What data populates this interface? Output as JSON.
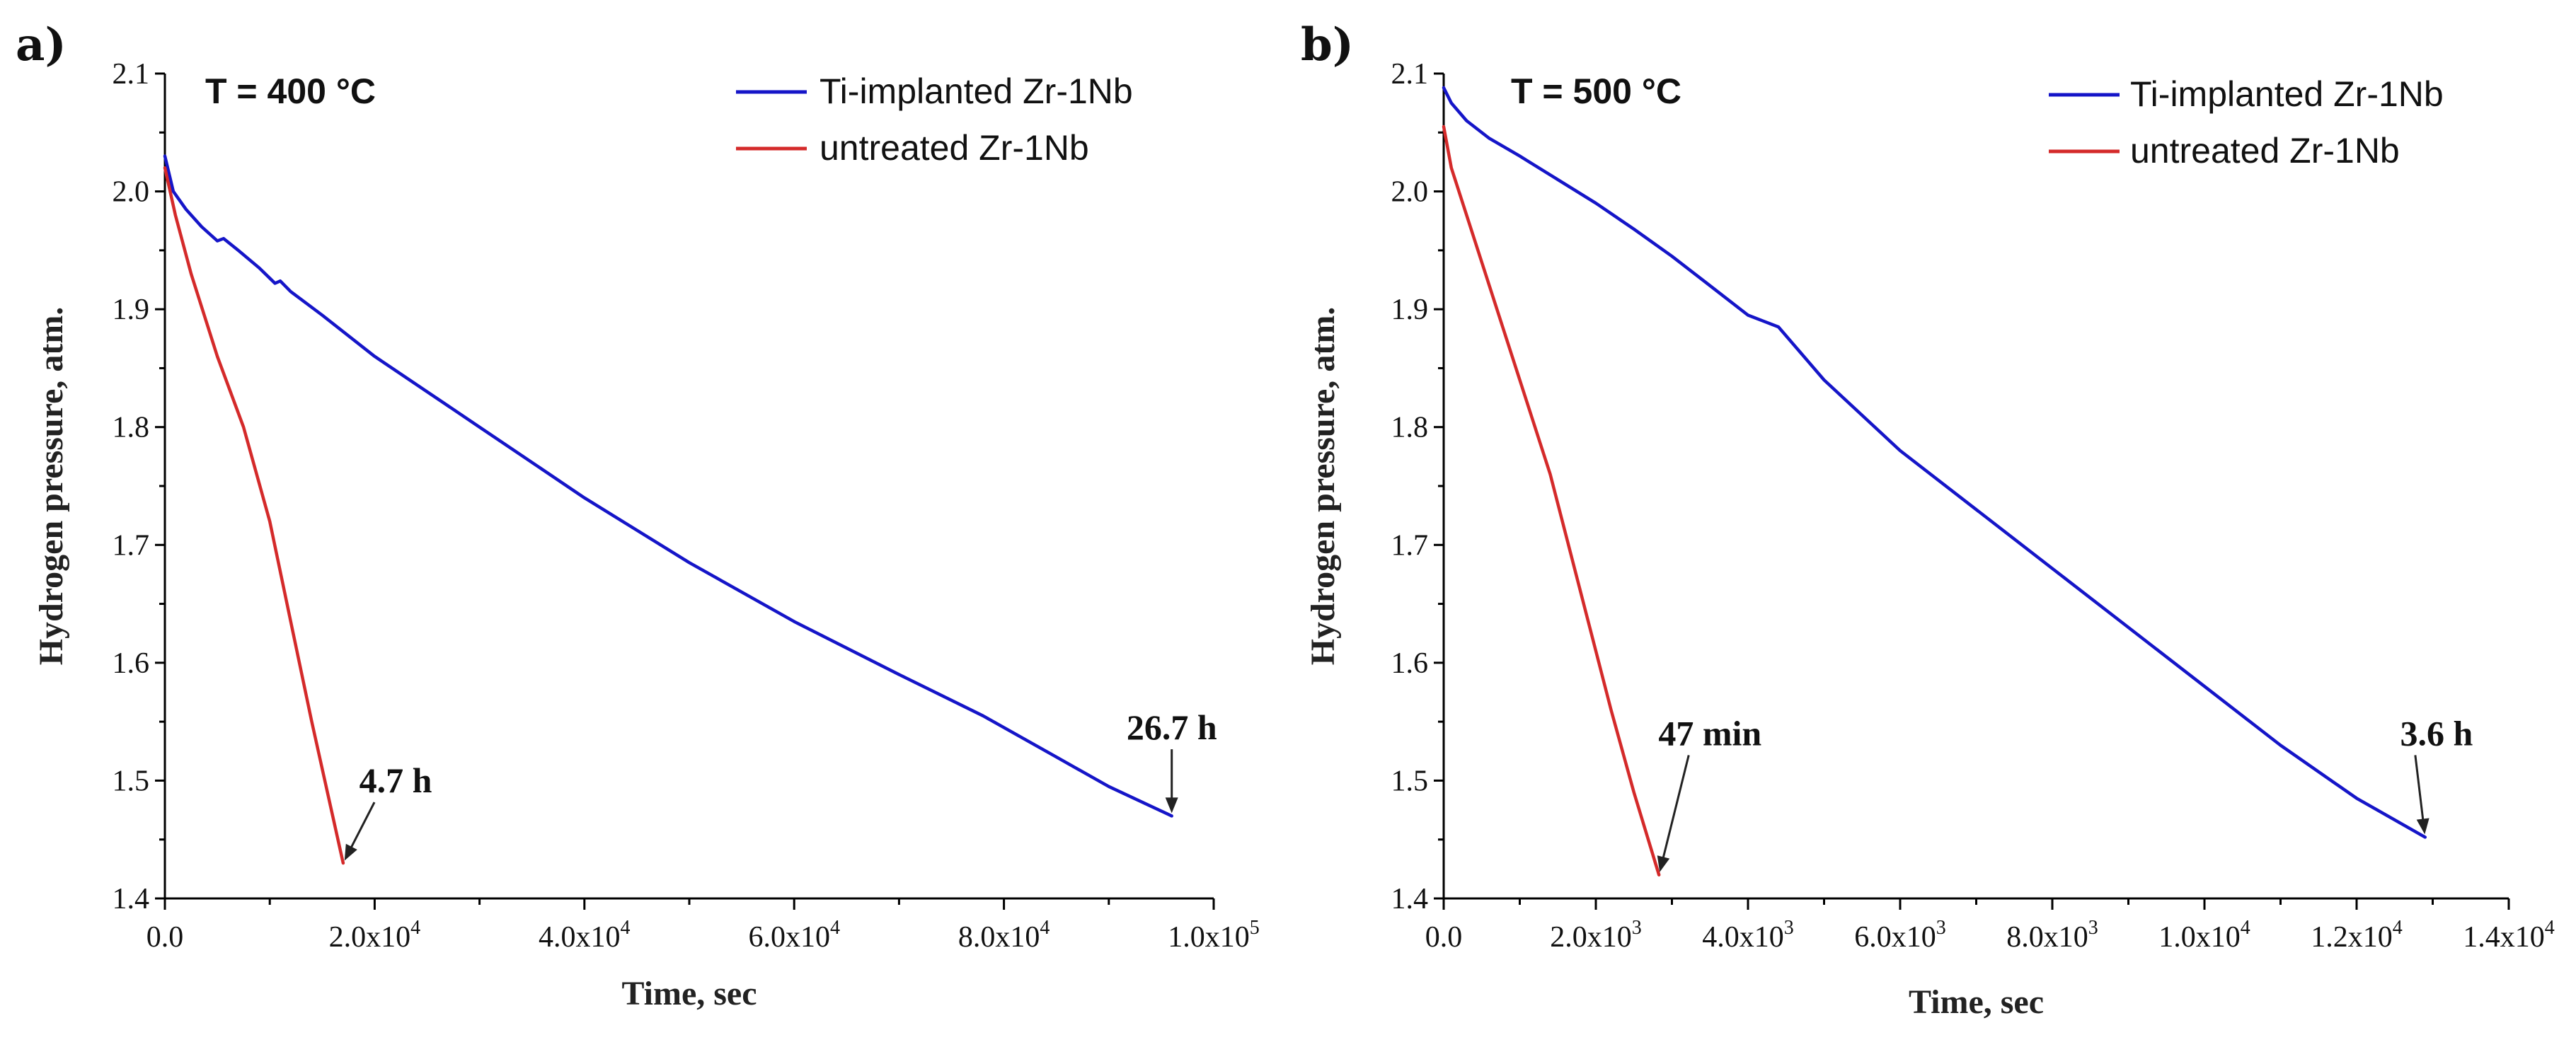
{
  "chart_data": [
    {
      "type": "line",
      "panel_label": "a)",
      "annotation_title": "T = 400 °C",
      "xlabel": "Time, sec",
      "ylabel": "Hydrogen pressure, atm.",
      "xlim": [
        0,
        100000
      ],
      "ylim": [
        1.4,
        2.1
      ],
      "x_ticks": [
        {
          "value": 0,
          "mantissa": "0.0",
          "exponent": ""
        },
        {
          "value": 20000,
          "mantissa": "2.0x10",
          "exponent": "4"
        },
        {
          "value": 40000,
          "mantissa": "4.0x10",
          "exponent": "4"
        },
        {
          "value": 60000,
          "mantissa": "6.0x10",
          "exponent": "4"
        },
        {
          "value": 80000,
          "mantissa": "8.0x10",
          "exponent": "4"
        },
        {
          "value": 100000,
          "mantissa": "1.0x10",
          "exponent": "5"
        }
      ],
      "y_ticks": [
        1.4,
        1.5,
        1.6,
        1.7,
        1.8,
        1.9,
        2.0,
        2.1
      ],
      "y_tick_labels": [
        "1.4",
        "1.5",
        "1.6",
        "1.7",
        "1.8",
        "1.9",
        "2.0",
        "2.1"
      ],
      "legend_position": "top-right",
      "series": [
        {
          "name": "Ti-implanted Zr-1Nb",
          "color": "#1515c8",
          "x": [
            0,
            800,
            2000,
            3500,
            5000,
            5600,
            7000,
            9000,
            10500,
            11000,
            12000,
            15000,
            20000,
            25000,
            30000,
            40000,
            50000,
            60000,
            70000,
            78000,
            85000,
            90000,
            96000
          ],
          "y": [
            2.03,
            2.0,
            1.985,
            1.97,
            1.958,
            1.96,
            1.95,
            1.935,
            1.922,
            1.924,
            1.915,
            1.895,
            1.86,
            1.83,
            1.8,
            1.74,
            1.685,
            1.635,
            1.59,
            1.555,
            1.52,
            1.495,
            1.47
          ]
        },
        {
          "name": "untreated Zr-1Nb",
          "color": "#d42a2a",
          "x": [
            0,
            1000,
            2500,
            5000,
            7500,
            10000,
            12000,
            14000,
            16000,
            17000
          ],
          "y": [
            2.02,
            1.98,
            1.93,
            1.86,
            1.8,
            1.72,
            1.635,
            1.55,
            1.47,
            1.43
          ]
        }
      ],
      "annotations": [
        {
          "text": "4.7 h",
          "x": 17000,
          "y": 1.43,
          "label_x": 22000,
          "label_y": 1.49,
          "label_anchor": "middle"
        },
        {
          "text": "26.7 h",
          "x": 96000,
          "y": 1.47,
          "label_x": 96000,
          "label_y": 1.535,
          "label_anchor": "middle"
        }
      ]
    },
    {
      "type": "line",
      "panel_label": "b)",
      "annotation_title": "T = 500 °C",
      "xlabel": "Time, sec",
      "ylabel": "Hydrogen pressure, atm.",
      "xlim": [
        0,
        14000
      ],
      "ylim": [
        1.4,
        2.1
      ],
      "x_ticks": [
        {
          "value": 0,
          "mantissa": "0.0",
          "exponent": ""
        },
        {
          "value": 2000,
          "mantissa": "2.0x10",
          "exponent": "3"
        },
        {
          "value": 4000,
          "mantissa": "4.0x10",
          "exponent": "3"
        },
        {
          "value": 6000,
          "mantissa": "6.0x10",
          "exponent": "3"
        },
        {
          "value": 8000,
          "mantissa": "8.0x10",
          "exponent": "3"
        },
        {
          "value": 10000,
          "mantissa": "1.0x10",
          "exponent": "4"
        },
        {
          "value": 12000,
          "mantissa": "1.2x10",
          "exponent": "4"
        },
        {
          "value": 14000,
          "mantissa": "1.4x10",
          "exponent": "4"
        }
      ],
      "y_ticks": [
        1.4,
        1.5,
        1.6,
        1.7,
        1.8,
        1.9,
        2.0,
        2.1
      ],
      "y_tick_labels": [
        "1.4",
        "1.5",
        "1.6",
        "1.7",
        "1.8",
        "1.9",
        "2.0",
        "2.1"
      ],
      "legend_position": "top-right",
      "series": [
        {
          "name": "Ti-implanted Zr-1Nb",
          "color": "#1515c8",
          "x": [
            0,
            100,
            300,
            600,
            1000,
            1500,
            2000,
            2500,
            3000,
            3500,
            4000,
            4200,
            4400,
            5000,
            6000,
            7000,
            8000,
            9000,
            10000,
            11000,
            12000,
            12900
          ],
          "y": [
            2.088,
            2.075,
            2.06,
            2.045,
            2.03,
            2.01,
            1.99,
            1.968,
            1.945,
            1.92,
            1.895,
            1.89,
            1.885,
            1.84,
            1.78,
            1.73,
            1.68,
            1.63,
            1.58,
            1.53,
            1.485,
            1.452
          ]
        },
        {
          "name": "untreated Zr-1Nb",
          "color": "#d42a2a",
          "x": [
            0,
            100,
            300,
            600,
            1000,
            1400,
            1800,
            2200,
            2500,
            2830
          ],
          "y": [
            2.055,
            2.02,
            1.98,
            1.92,
            1.84,
            1.76,
            1.66,
            1.56,
            1.49,
            1.42
          ]
        }
      ],
      "annotations": [
        {
          "text": "47 min",
          "x": 2830,
          "y": 1.42,
          "label_x": 3500,
          "label_y": 1.53,
          "label_anchor": "middle"
        },
        {
          "text": "3.6 h",
          "x": 12900,
          "y": 1.452,
          "label_x": 13050,
          "label_y": 1.53,
          "label_anchor": "middle"
        }
      ]
    }
  ]
}
